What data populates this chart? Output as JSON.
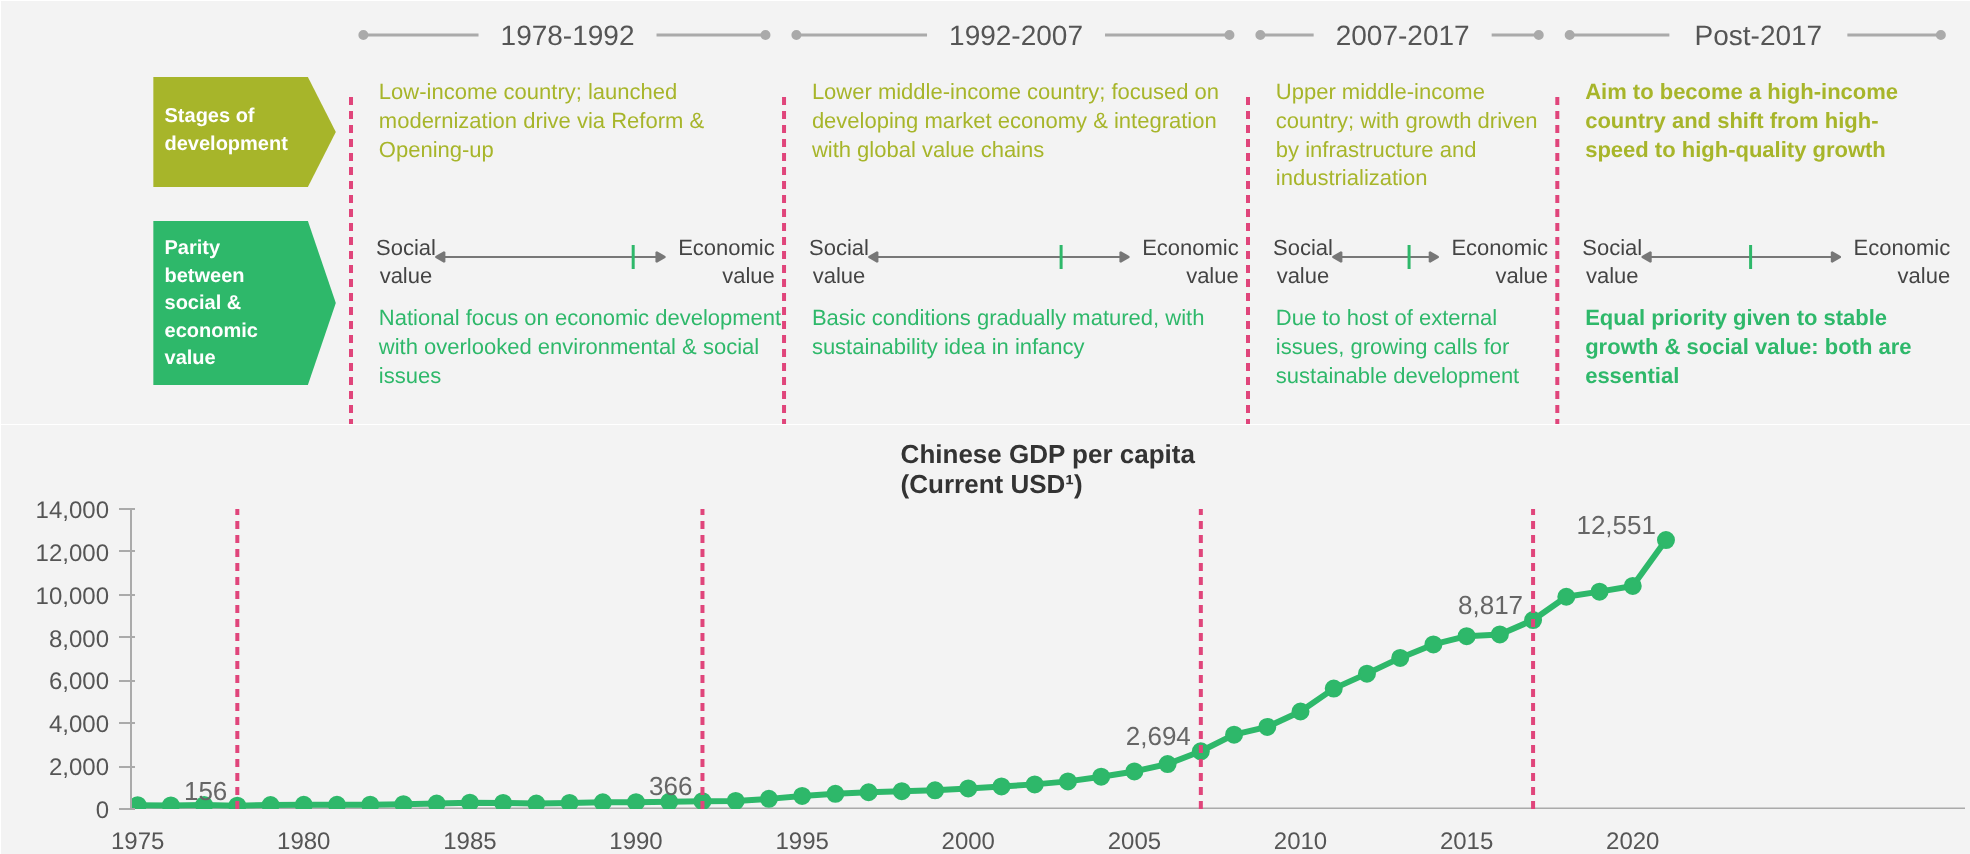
{
  "chart_data": {
    "type": "line",
    "title": "Chinese GDP per capita\n(Current USD¹)",
    "x": [
      1975,
      1976,
      1977,
      1978,
      1979,
      1980,
      1981,
      1982,
      1983,
      1984,
      1985,
      1986,
      1987,
      1988,
      1989,
      1990,
      1991,
      1992,
      1993,
      1994,
      1995,
      1996,
      1997,
      1998,
      1999,
      2000,
      2001,
      2002,
      2003,
      2004,
      2005,
      2006,
      2007,
      2008,
      2009,
      2010,
      2011,
      2012,
      2013,
      2014,
      2015,
      2016,
      2017,
      2018,
      2019,
      2020,
      2021
    ],
    "series": [
      {
        "color": "#2eb86a",
        "values": [
          178,
          165,
          185,
          156,
          183,
          195,
          197,
          203,
          225,
          251,
          294,
          282,
          252,
          284,
          311,
          318,
          333,
          366,
          377,
          473,
          610,
          709,
          782,
          829,
          873,
          959,
          1053,
          1149,
          1289,
          1509,
          1753,
          2099,
          2694,
          3468,
          3832,
          4550,
          5618,
          6317,
          7051,
          7679,
          8067,
          8148,
          8817,
          9905,
          10144,
          10409,
          12551
        ],
        "value_labels": [
          null,
          null,
          null,
          "156",
          null,
          null,
          null,
          null,
          null,
          null,
          null,
          null,
          null,
          null,
          null,
          null,
          null,
          "366",
          null,
          null,
          null,
          null,
          null,
          null,
          null,
          null,
          null,
          null,
          null,
          null,
          null,
          null,
          "2,694",
          null,
          null,
          null,
          null,
          null,
          null,
          null,
          null,
          null,
          "8,817",
          null,
          null,
          null,
          "12,551"
        ]
      }
    ],
    "marker": "circle",
    "line_style": "solid",
    "grid": false,
    "xlim": [
      1974.8,
      2030
    ],
    "xticks": [
      1975,
      1980,
      1985,
      1990,
      1995,
      2000,
      2005,
      2010,
      2015,
      2020
    ],
    "ylim": [
      0,
      14000
    ],
    "yticks": [
      0,
      {
        "value": 2000,
        "label": "2,000"
      },
      {
        "value": 4000,
        "label": "4,000"
      },
      {
        "value": 6000,
        "label": "6,000"
      },
      {
        "value": 8000,
        "label": "8,000"
      },
      {
        "value": 10000,
        "label": "10,000"
      },
      {
        "value": 12000,
        "label": "12,000"
      },
      {
        "value": 14000,
        "label": "14,000"
      }
    ],
    "ref_lines": [
      {
        "axis": "x",
        "value": 1978,
        "color": "#e0457b",
        "line_style": "dashed"
      },
      {
        "axis": "x",
        "value": 1992,
        "color": "#e0457b",
        "line_style": "dashed"
      },
      {
        "axis": "x",
        "value": 2007,
        "color": "#e0457b",
        "line_style": "dashed"
      },
      {
        "axis": "x",
        "value": 2017,
        "color": "#e0457b",
        "line_style": "dashed"
      }
    ],
    "annotations": [
      "Stages of development",
      "Parity between social & economic value",
      "1978-1992",
      "Low-income country; launched modernization drive via Reform & Opening-up",
      "Social value",
      "Economic value",
      "National focus on economic development with overlooked environmental & social issues",
      "1992-2007",
      "Lower middle-income country; focused on developing market economy & integration with global value chains",
      "Social value",
      "Economic value",
      "Basic conditions gradually matured, with sustainability idea in infancy",
      "2007-2017",
      "Upper middle-income country; with growth driven by infrastructure and industrialization",
      "Social value",
      "Economic value",
      "Due to host of external issues, growing calls for sustainable development",
      "Post-2017",
      "Aim to become a high-income country and shift from high-speed to high-quality growth",
      "Social value",
      "Economic value",
      "Equal priority given to stable growth & social value: both are essential"
    ]
  }
}
